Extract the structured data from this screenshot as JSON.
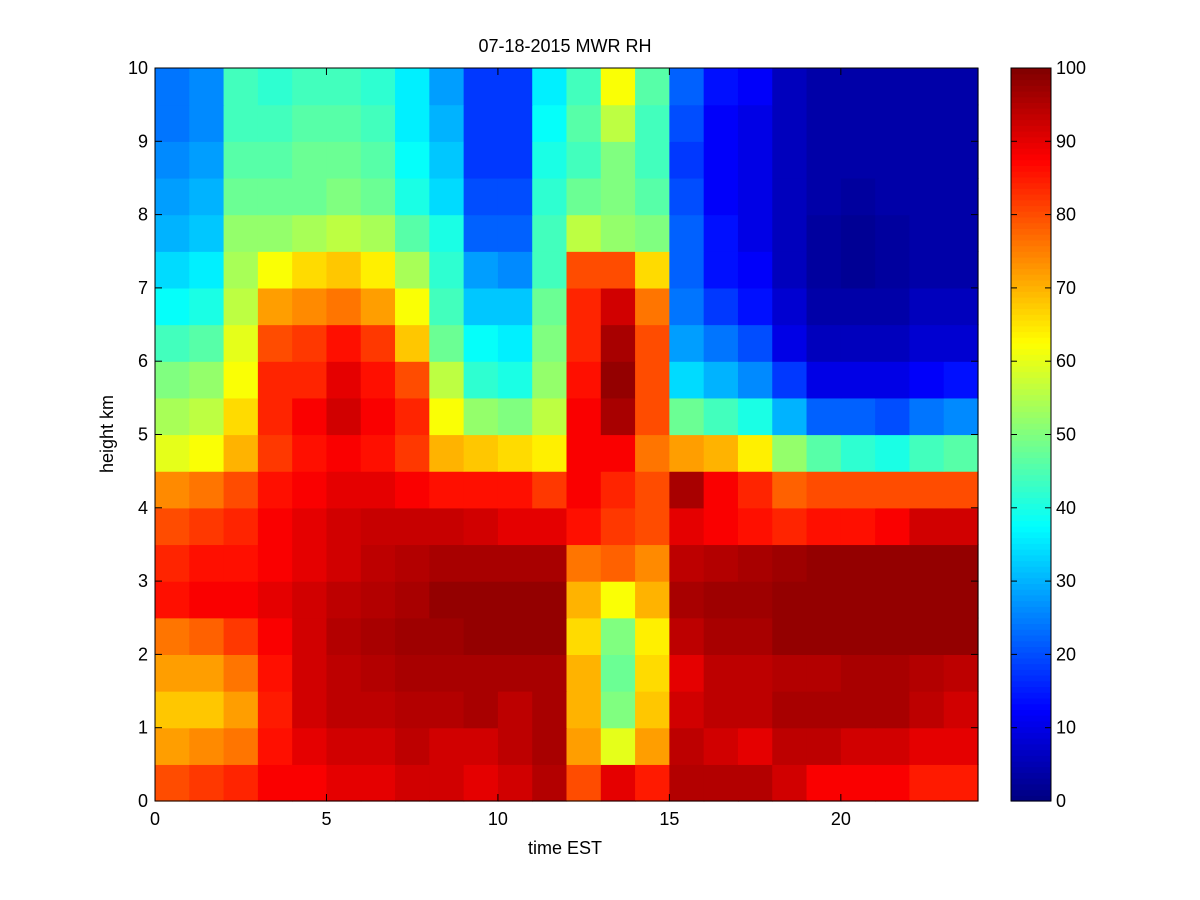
{
  "chart_data": {
    "type": "heatmap",
    "title": "07-18-2015 MWR RH",
    "xlabel": "time EST",
    "ylabel": "height km",
    "xlim": [
      0,
      24
    ],
    "ylim": [
      0,
      10
    ],
    "x_ticks": [
      0,
      5,
      10,
      15,
      20
    ],
    "y_ticks": [
      0,
      1,
      2,
      3,
      4,
      5,
      6,
      7,
      8,
      9,
      10
    ],
    "colorbar": {
      "range": [
        0,
        100
      ],
      "ticks": [
        0,
        10,
        20,
        30,
        40,
        50,
        60,
        70,
        80,
        90,
        100
      ],
      "colormap": "jet"
    },
    "grid": false,
    "time_bins_EST": [
      0,
      1,
      2,
      3,
      4,
      5,
      6,
      7,
      8,
      9,
      10,
      11,
      12,
      13,
      14,
      15,
      16,
      17,
      18,
      19,
      20,
      21,
      22,
      23
    ],
    "height_levels_km": [
      0,
      0.5,
      1,
      1.5,
      2,
      2.5,
      3,
      3.5,
      4,
      4.5,
      5,
      5.5,
      6,
      6.5,
      7,
      7.5,
      8,
      8.5,
      9,
      9.5
    ],
    "values_note": "rows = height_levels_km, columns = time_bins_EST, RH %",
    "values": [
      [
        80,
        82,
        84,
        88,
        88,
        90,
        90,
        92,
        92,
        90,
        92,
        95,
        80,
        90,
        85,
        95,
        95,
        95,
        92,
        88,
        88,
        88,
        85,
        85
      ],
      [
        72,
        74,
        76,
        86,
        90,
        92,
        92,
        94,
        92,
        92,
        94,
        96,
        72,
        60,
        72,
        94,
        92,
        90,
        94,
        94,
        92,
        92,
        90,
        90
      ],
      [
        68,
        68,
        72,
        85,
        92,
        94,
        94,
        95,
        95,
        96,
        94,
        96,
        70,
        50,
        68,
        92,
        94,
        94,
        96,
        96,
        96,
        96,
        94,
        92
      ],
      [
        72,
        72,
        76,
        86,
        92,
        94,
        95,
        96,
        96,
        96,
        96,
        96,
        70,
        48,
        66,
        90,
        94,
        94,
        95,
        95,
        96,
        96,
        95,
        94
      ],
      [
        76,
        78,
        82,
        88,
        92,
        95,
        96,
        97,
        97,
        98,
        98,
        98,
        66,
        50,
        64,
        94,
        96,
        96,
        98,
        98,
        98,
        98,
        98,
        98
      ],
      [
        86,
        88,
        88,
        90,
        92,
        94,
        95,
        96,
        98,
        98,
        98,
        98,
        70,
        62,
        70,
        96,
        97,
        97,
        98,
        98,
        98,
        98,
        98,
        98
      ],
      [
        84,
        86,
        86,
        88,
        90,
        92,
        94,
        95,
        96,
        96,
        96,
        96,
        76,
        78,
        74,
        94,
        95,
        96,
        97,
        98,
        98,
        98,
        98,
        98
      ],
      [
        80,
        82,
        84,
        88,
        90,
        92,
        93,
        93,
        93,
        92,
        90,
        90,
        86,
        82,
        80,
        90,
        88,
        86,
        84,
        86,
        86,
        88,
        92,
        92
      ],
      [
        74,
        76,
        80,
        86,
        88,
        90,
        90,
        88,
        86,
        86,
        86,
        82,
        88,
        84,
        80,
        96,
        88,
        84,
        78,
        80,
        80,
        80,
        80,
        80
      ],
      [
        60,
        62,
        70,
        82,
        86,
        88,
        86,
        82,
        70,
        68,
        66,
        64,
        88,
        88,
        76,
        72,
        70,
        64,
        52,
        46,
        42,
        40,
        44,
        46
      ],
      [
        54,
        56,
        66,
        84,
        88,
        92,
        88,
        84,
        62,
        52,
        50,
        56,
        88,
        96,
        80,
        48,
        44,
        40,
        30,
        22,
        22,
        20,
        24,
        26
      ],
      [
        50,
        52,
        62,
        84,
        84,
        90,
        86,
        80,
        56,
        42,
        40,
        52,
        86,
        98,
        80,
        34,
        30,
        26,
        18,
        10,
        10,
        10,
        12,
        14
      ],
      [
        44,
        46,
        60,
        80,
        82,
        86,
        82,
        68,
        48,
        38,
        36,
        50,
        84,
        96,
        80,
        28,
        24,
        20,
        10,
        6,
        6,
        6,
        8,
        8
      ],
      [
        38,
        40,
        56,
        72,
        74,
        76,
        72,
        62,
        44,
        32,
        32,
        48,
        84,
        92,
        76,
        24,
        18,
        14,
        8,
        4,
        4,
        4,
        6,
        6
      ],
      [
        34,
        36,
        54,
        62,
        66,
        68,
        64,
        54,
        42,
        28,
        26,
        44,
        80,
        80,
        66,
        22,
        14,
        12,
        6,
        3,
        2,
        3,
        4,
        4
      ],
      [
        30,
        32,
        52,
        52,
        54,
        56,
        54,
        46,
        40,
        22,
        22,
        44,
        56,
        52,
        50,
        22,
        14,
        10,
        6,
        3,
        2,
        3,
        4,
        4
      ],
      [
        28,
        30,
        48,
        48,
        48,
        50,
        48,
        40,
        34,
        20,
        20,
        42,
        48,
        50,
        46,
        20,
        12,
        10,
        6,
        4,
        3,
        4,
        4,
        4
      ],
      [
        26,
        28,
        46,
        46,
        48,
        48,
        46,
        38,
        32,
        18,
        18,
        40,
        44,
        50,
        44,
        18,
        12,
        10,
        6,
        4,
        4,
        4,
        4,
        4
      ],
      [
        24,
        26,
        44,
        44,
        46,
        46,
        44,
        36,
        30,
        18,
        18,
        38,
        46,
        56,
        44,
        20,
        12,
        10,
        6,
        4,
        4,
        4,
        4,
        4
      ],
      [
        24,
        26,
        44,
        42,
        44,
        44,
        42,
        36,
        28,
        18,
        18,
        36,
        44,
        62,
        46,
        22,
        14,
        12,
        6,
        4,
        4,
        4,
        4,
        4
      ]
    ]
  }
}
